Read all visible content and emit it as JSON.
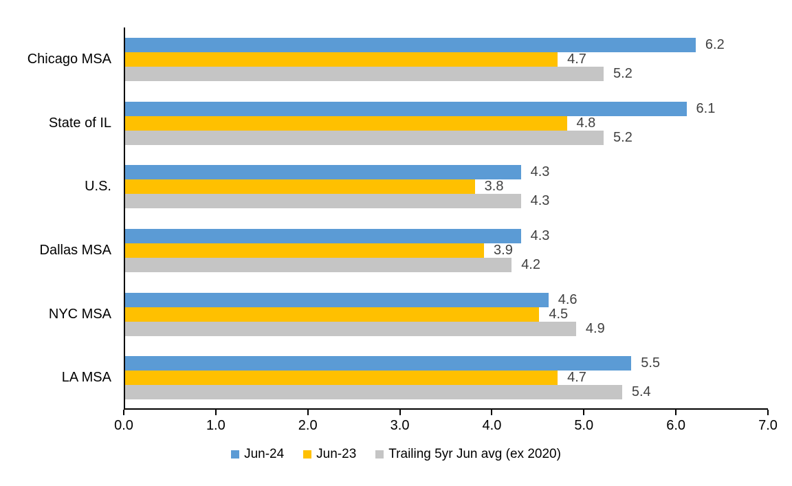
{
  "chart_data": {
    "type": "bar",
    "orientation": "horizontal",
    "title": "",
    "xlabel": "",
    "ylabel": "",
    "categories": [
      "Chicago MSA",
      "State of IL",
      "U.S.",
      "Dallas MSA",
      "NYC MSA",
      "LA MSA"
    ],
    "series": [
      {
        "name": "Jun-24",
        "color": "#5B9BD5",
        "values": [
          6.2,
          6.1,
          4.3,
          4.3,
          4.6,
          5.5
        ]
      },
      {
        "name": "Jun-23",
        "color": "#FFC000",
        "values": [
          4.7,
          4.8,
          3.8,
          3.9,
          4.5,
          4.7
        ]
      },
      {
        "name": "Trailing 5yr Jun avg (ex 2020)",
        "color": "#C5C5C5",
        "values": [
          5.2,
          5.2,
          4.3,
          4.2,
          4.9,
          5.4
        ]
      }
    ],
    "data_labels_shown": true,
    "data_label_decimals": 1,
    "xlim": [
      0,
      7
    ],
    "x_ticks": [
      "0.0",
      "1.0",
      "2.0",
      "3.0",
      "4.0",
      "5.0",
      "6.0",
      "7.0"
    ],
    "grid": false,
    "legend_position": "bottom",
    "colors": {
      "axis": "#000000",
      "data_label_text": "#404040",
      "category_label_text": "#000000",
      "background": "#ffffff"
    }
  }
}
